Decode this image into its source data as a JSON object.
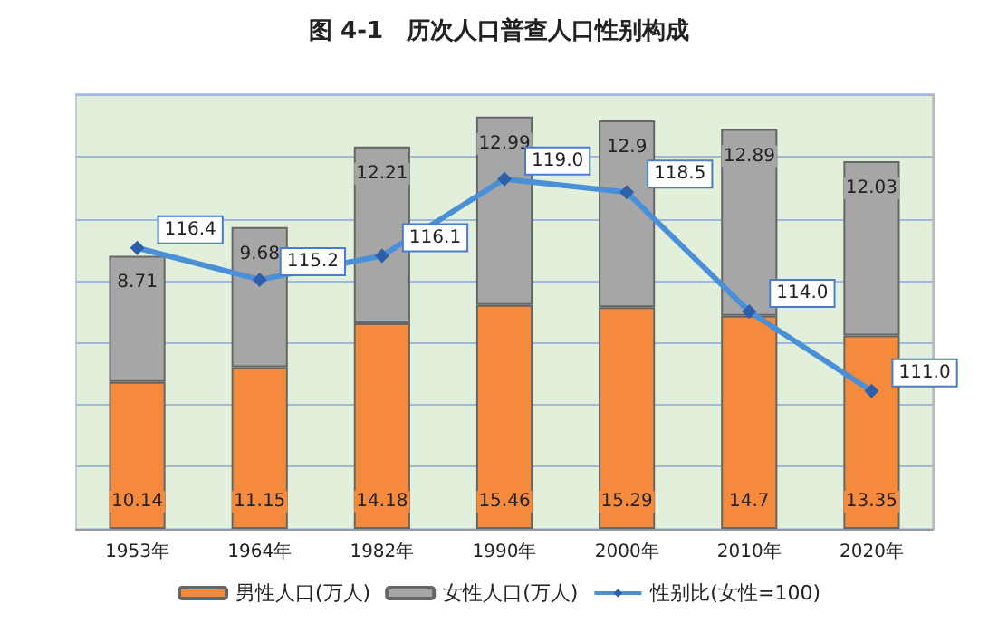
{
  "chart_data": {
    "type": "bar",
    "title": "图 4-1　历次人口普查人口性别构成",
    "categories": [
      "1953年",
      "1964年",
      "1982年",
      "1990年",
      "2000年",
      "2010年",
      "2020年"
    ],
    "stacked": true,
    "data_labels": true,
    "tick_labels": "x",
    "grid": "y",
    "legend": "bottom",
    "marker": "diamond",
    "ylim": [
      0,
      30
    ],
    "yticks": [
      {
        "value": 0,
        "label": null
      },
      {
        "value": 4.3,
        "label": null
      },
      {
        "value": 8.6,
        "label": null
      },
      {
        "value": 12.9,
        "label": null
      },
      {
        "value": 17.1,
        "label": null
      },
      {
        "value": 21.4,
        "label": null
      },
      {
        "value": 25.7,
        "label": null
      },
      {
        "value": 30,
        "label": null
      }
    ],
    "series": [
      {
        "name": "男性人口(万人)",
        "color": "#f58a3c",
        "values": [
          10.14,
          11.15,
          14.18,
          15.46,
          15.29,
          14.7,
          13.35
        ]
      },
      {
        "name": "女性人口(万人)",
        "color": "#a6a6a6",
        "values": [
          8.71,
          9.68,
          12.21,
          12.99,
          12.9,
          12.89,
          12.03
        ]
      },
      {
        "name": "性别比(女性=100)",
        "type": "line",
        "axis": "y2",
        "color": "#4a90d9",
        "values": [
          116.4,
          115.2,
          116.1,
          119.0,
          118.5,
          114.0,
          111.0
        ],
        "value_labels": [
          "116.4",
          "115.2",
          "116.1",
          "119.0",
          "118.5",
          "114.0",
          "111.0"
        ]
      }
    ]
  }
}
